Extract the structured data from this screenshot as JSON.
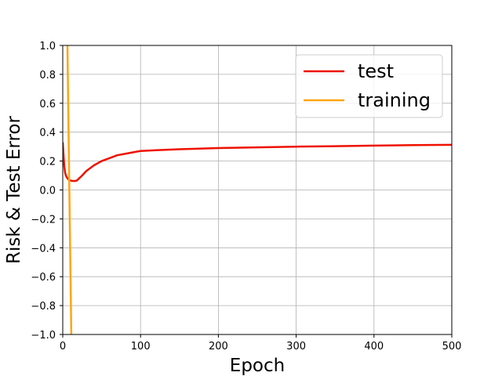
{
  "chart_data": {
    "type": "line",
    "xlabel": "Epoch",
    "ylabel": "Risk & Test Error",
    "xlim": [
      0,
      500
    ],
    "ylim": [
      -1.0,
      1.0
    ],
    "xticks": [
      0,
      100,
      200,
      300,
      400,
      500
    ],
    "xtick_labels": [
      "0",
      "100",
      "200",
      "300",
      "400",
      "500"
    ],
    "yticks": [
      -1.0,
      -0.8,
      -0.6,
      -0.4,
      -0.2,
      0.0,
      0.2,
      0.4,
      0.6,
      0.8,
      1.0
    ],
    "ytick_labels": [
      "−1.0",
      "−0.8",
      "−0.6",
      "−0.4",
      "−0.2",
      "0.0",
      "0.2",
      "0.4",
      "0.6",
      "0.8",
      "1.0"
    ],
    "grid": true,
    "legend_position": "top-right",
    "series": [
      {
        "name": "test",
        "color": "#ee1100",
        "x": [
          0,
          1,
          2,
          3,
          4,
          5,
          6,
          8,
          10,
          12,
          15,
          18,
          20,
          25,
          30,
          40,
          50,
          60,
          70,
          80,
          90,
          100,
          120,
          150,
          200,
          250,
          300,
          350,
          400,
          450,
          500
        ],
        "y": [
          0.33,
          0.24,
          0.16,
          0.12,
          0.1,
          0.09,
          0.08,
          0.07,
          0.065,
          0.063,
          0.062,
          0.065,
          0.075,
          0.1,
          0.13,
          0.17,
          0.2,
          0.22,
          0.24,
          0.25,
          0.26,
          0.27,
          0.275,
          0.282,
          0.29,
          0.295,
          0.3,
          0.303,
          0.307,
          0.31,
          0.312
        ]
      },
      {
        "name": "training",
        "color": "#ffa510",
        "x": [
          6,
          7,
          8,
          9,
          10,
          11
        ],
        "y": [
          1.0,
          0.6,
          0.2,
          -0.2,
          -0.6,
          -1.0
        ]
      }
    ]
  }
}
